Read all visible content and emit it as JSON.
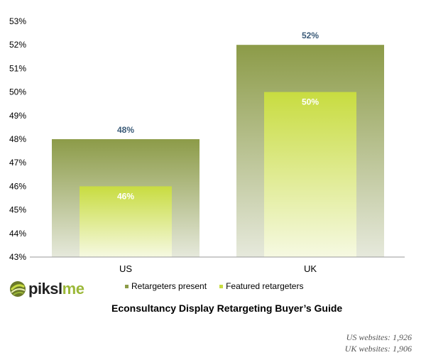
{
  "chart_data": {
    "type": "bar",
    "categories": [
      "US",
      "UK"
    ],
    "series": [
      {
        "name": "Retargeters present",
        "values": [
          48,
          52
        ],
        "labels": [
          "48%",
          "52%"
        ],
        "color": "#8c9b48"
      },
      {
        "name": "Featured retargeters",
        "values": [
          46,
          50
        ],
        "labels": [
          "46%",
          "50%"
        ],
        "color": "#c8dc40"
      }
    ],
    "ylim": [
      43,
      53
    ],
    "yticks": [
      "43%",
      "44%",
      "45%",
      "46%",
      "47%",
      "48%",
      "49%",
      "50%",
      "51%",
      "52%",
      "53%"
    ],
    "legend_position": "bottom",
    "grid": false
  },
  "brand": {
    "logo_prefix": "piksl",
    "logo_suffix": "me"
  },
  "subtitle": "Econsultancy Display  Retargeting Buyer’s Guide",
  "notes": [
    "US websites: 1,926",
    "UK websites: 1,906"
  ],
  "colors": {
    "outer_top": "#8c9b48",
    "outer_bottom": "#e6e9dc",
    "inner_top": "#c8dc40",
    "inner_bottom": "#f6f9e2",
    "outer_label": "#3b5b78",
    "inner_label": "#ffffff"
  }
}
